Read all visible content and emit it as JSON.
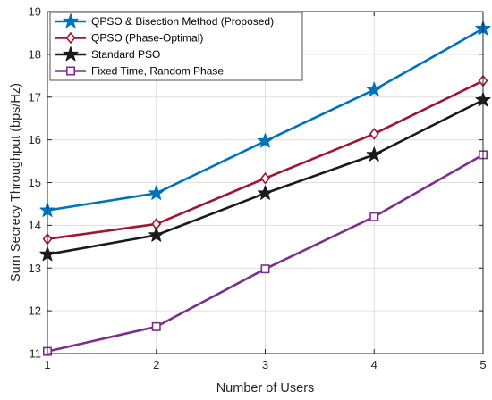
{
  "chart_data": {
    "type": "line",
    "title": "",
    "xlabel": "Number of Users",
    "ylabel": "Sum Secrecy Throughput (bps/Hz)",
    "x": [
      1,
      2,
      3,
      4,
      5
    ],
    "xlim": [
      1,
      5
    ],
    "ylim": [
      11,
      19
    ],
    "xticks": [
      1,
      2,
      3,
      4,
      5
    ],
    "yticks": [
      11,
      12,
      13,
      14,
      15,
      16,
      17,
      18,
      19
    ],
    "grid": true,
    "legend_position": "top-left",
    "series": [
      {
        "name": "QPSO & Bisection Method (Proposed)",
        "values": [
          14.35,
          14.75,
          15.97,
          17.17,
          18.6
        ],
        "color": "#0072BD",
        "marker": "star"
      },
      {
        "name": "QPSO (Phase-Optimal)",
        "values": [
          13.68,
          14.03,
          15.1,
          16.14,
          17.38
        ],
        "color": "#A2142F",
        "marker": "diamond"
      },
      {
        "name": "Standard PSO",
        "values": [
          13.32,
          13.77,
          14.75,
          15.65,
          16.93
        ],
        "color": "#1A1A1A",
        "marker": "filled-star"
      },
      {
        "name": "Fixed Time, Random Phase",
        "values": [
          11.05,
          11.63,
          12.98,
          14.2,
          15.65
        ],
        "color": "#7E2F8E",
        "marker": "square"
      }
    ]
  }
}
